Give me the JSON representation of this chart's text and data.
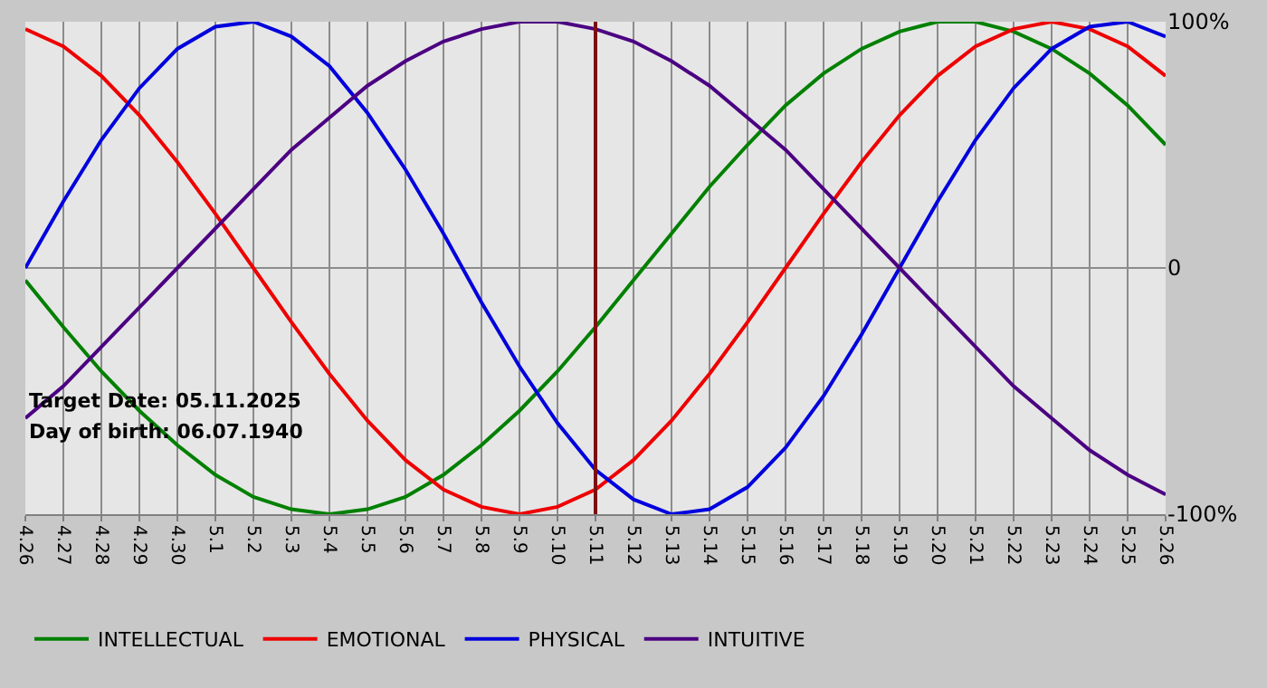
{
  "chart_data": {
    "type": "line",
    "categories": [
      "4.26",
      "4.27",
      "4.28",
      "4.29",
      "4.30",
      "5.1",
      "5.2",
      "5.3",
      "5.4",
      "5.5",
      "5.6",
      "5.7",
      "5.8",
      "5.9",
      "5.10",
      "5.11",
      "5.12",
      "5.13",
      "5.14",
      "5.15",
      "5.16",
      "5.17",
      "5.18",
      "5.19",
      "5.20",
      "5.21",
      "5.22",
      "5.23",
      "5.24",
      "5.25",
      "5.26"
    ],
    "series": [
      {
        "name": "INTELLECTUAL",
        "color": "#008000",
        "values": [
          -5,
          -24,
          -42,
          -58,
          -72,
          -84,
          -93,
          -98,
          -100,
          -98,
          -93,
          -84,
          -72,
          -58,
          -42,
          -24,
          -5,
          14,
          33,
          50,
          66,
          79,
          89,
          96,
          100,
          100,
          96,
          89,
          79,
          66,
          50
        ]
      },
      {
        "name": "EMOTIONAL",
        "color": "#ee0000",
        "values": [
          97,
          90,
          78,
          62,
          43,
          22,
          0,
          -22,
          -43,
          -62,
          -78,
          -90,
          -97,
          -100,
          -97,
          -90,
          -78,
          -62,
          -43,
          -22,
          0,
          22,
          43,
          62,
          78,
          90,
          97,
          100,
          97,
          90,
          78
        ]
      },
      {
        "name": "PHYSICAL",
        "color": "#0000dd",
        "values": [
          0,
          27,
          52,
          73,
          89,
          98,
          100,
          94,
          82,
          63,
          40,
          14,
          -14,
          -40,
          -63,
          -82,
          -94,
          -100,
          -98,
          -89,
          -73,
          -52,
          -27,
          0,
          27,
          52,
          73,
          89,
          98,
          100,
          94
        ]
      },
      {
        "name": "INTUITIVE",
        "color": "#4b0082",
        "values": [
          -61,
          -48,
          -32,
          -16,
          0,
          16,
          32,
          48,
          61,
          74,
          84,
          92,
          97,
          100,
          100,
          97,
          92,
          84,
          74,
          61,
          48,
          32,
          16,
          0,
          -16,
          -32,
          -48,
          -61,
          -74,
          -84,
          -92
        ]
      }
    ],
    "ylim": [
      -100,
      100
    ],
    "yticks": [
      {
        "value": 100,
        "label": "100%"
      },
      0,
      {
        "value": -100,
        "label": "-100%"
      }
    ],
    "ref_lines": [
      {
        "axis": "x",
        "value": "5.11",
        "color": "#7b1010"
      }
    ],
    "annotations": [
      "Target Date: 05.11.2025",
      "Day of birth: 06.07.1940"
    ],
    "grid": true,
    "legend": "bottom",
    "marker": "none",
    "line_style": "solid"
  }
}
